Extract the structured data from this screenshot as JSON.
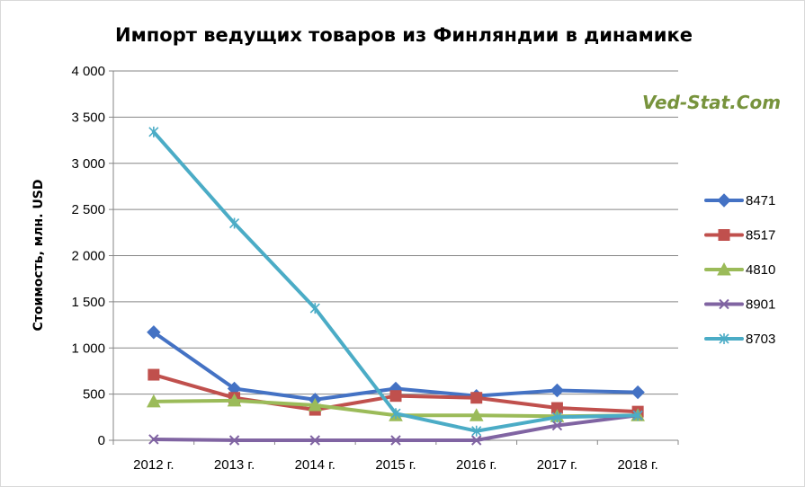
{
  "chart_data": {
    "type": "line",
    "title": "Импорт ведущих товаров из Финляндии в динамике",
    "watermark": "Ved-Stat.Com",
    "ylabel": "Стоимость, млн. USD",
    "xlabel": "",
    "categories": [
      "2012 г.",
      "2013 г.",
      "2014 г.",
      "2015 г.",
      "2016 г.",
      "2017 г.",
      "2018 г."
    ],
    "ylim": [
      0,
      4000
    ],
    "yticks": [
      {
        "value": 0,
        "label": "0"
      },
      {
        "value": 500,
        "label": "500"
      },
      {
        "value": 1000,
        "label": "1 000"
      },
      {
        "value": 1500,
        "label": "1 500"
      },
      {
        "value": 2000,
        "label": "2 000"
      },
      {
        "value": 2500,
        "label": "2 500"
      },
      {
        "value": 3000,
        "label": "3 000"
      },
      {
        "value": 3500,
        "label": "3 500"
      },
      {
        "value": 4000,
        "label": "4 000"
      }
    ],
    "grid": true,
    "legend_position": "right",
    "series": [
      {
        "name": "8471",
        "color": "#4472C4",
        "marker": "diamond",
        "values": [
          1170,
          560,
          440,
          560,
          480,
          540,
          520
        ]
      },
      {
        "name": "8517",
        "color": "#C0504D",
        "marker": "square",
        "values": [
          710,
          460,
          330,
          480,
          460,
          350,
          310
        ]
      },
      {
        "name": "4810",
        "color": "#9BBB59",
        "marker": "triangle",
        "values": [
          420,
          430,
          380,
          270,
          270,
          260,
          270
        ]
      },
      {
        "name": "8901",
        "color": "#8064A2",
        "marker": "x",
        "values": [
          10,
          0,
          0,
          0,
          0,
          160,
          270
        ]
      },
      {
        "name": "8703",
        "color": "#4BACC6",
        "marker": "star",
        "values": [
          3340,
          2350,
          1430,
          290,
          100,
          250,
          270
        ]
      }
    ]
  }
}
